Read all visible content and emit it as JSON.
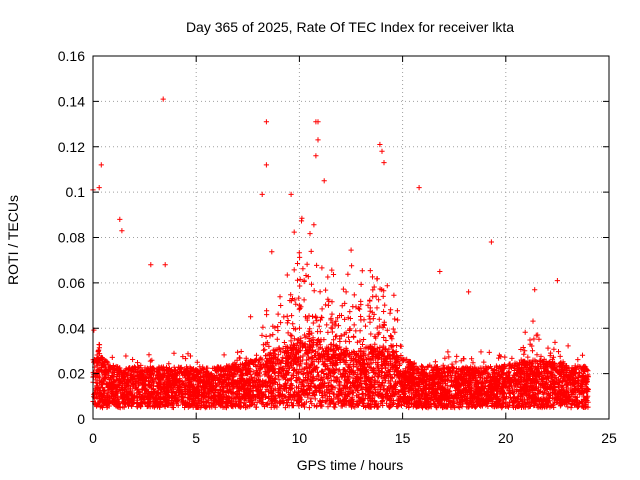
{
  "chart_data": {
    "type": "scatter",
    "title": "Day 365 of 2025, Rate Of TEC Index for receiver lkta",
    "xlabel": "GPS time / hours",
    "ylabel": "ROTI / TECUs",
    "xlim": [
      0,
      25
    ],
    "ylim": [
      0,
      0.16
    ],
    "xticks": [
      "0",
      "5",
      "10",
      "15",
      "20",
      "25"
    ],
    "yticks": [
      "0",
      "0.02",
      "0.04",
      "0.06",
      "0.08",
      "0.1",
      "0.12",
      "0.14",
      "0.16"
    ],
    "grid": true,
    "marker": "+",
    "series": [
      {
        "name": "ROTI",
        "color": "#ff0000",
        "data_range_hours": [
          0,
          24
        ],
        "baseline_band": [
          0.005,
          0.03
        ],
        "notable_points": [
          {
            "x": 3.4,
            "y": 0.141
          },
          {
            "x": 8.4,
            "y": 0.131
          },
          {
            "x": 10.8,
            "y": 0.131
          },
          {
            "x": 10.9,
            "y": 0.131
          },
          {
            "x": 10.9,
            "y": 0.123
          },
          {
            "x": 10.8,
            "y": 0.116
          },
          {
            "x": 13.9,
            "y": 0.121
          },
          {
            "x": 14.0,
            "y": 0.118
          },
          {
            "x": 14.1,
            "y": 0.113
          },
          {
            "x": 8.4,
            "y": 0.112
          },
          {
            "x": 0.4,
            "y": 0.112
          },
          {
            "x": 15.8,
            "y": 0.102
          },
          {
            "x": 0.0,
            "y": 0.101
          },
          {
            "x": 0.3,
            "y": 0.102
          },
          {
            "x": 9.6,
            "y": 0.099
          },
          {
            "x": 8.2,
            "y": 0.099
          },
          {
            "x": 11.2,
            "y": 0.105
          },
          {
            "x": 1.3,
            "y": 0.088
          },
          {
            "x": 1.4,
            "y": 0.083
          },
          {
            "x": 19.3,
            "y": 0.078
          },
          {
            "x": 3.5,
            "y": 0.068
          },
          {
            "x": 2.8,
            "y": 0.068
          },
          {
            "x": 16.8,
            "y": 0.065
          },
          {
            "x": 22.5,
            "y": 0.061
          },
          {
            "x": 21.4,
            "y": 0.057
          },
          {
            "x": 18.2,
            "y": 0.056
          }
        ]
      }
    ]
  }
}
